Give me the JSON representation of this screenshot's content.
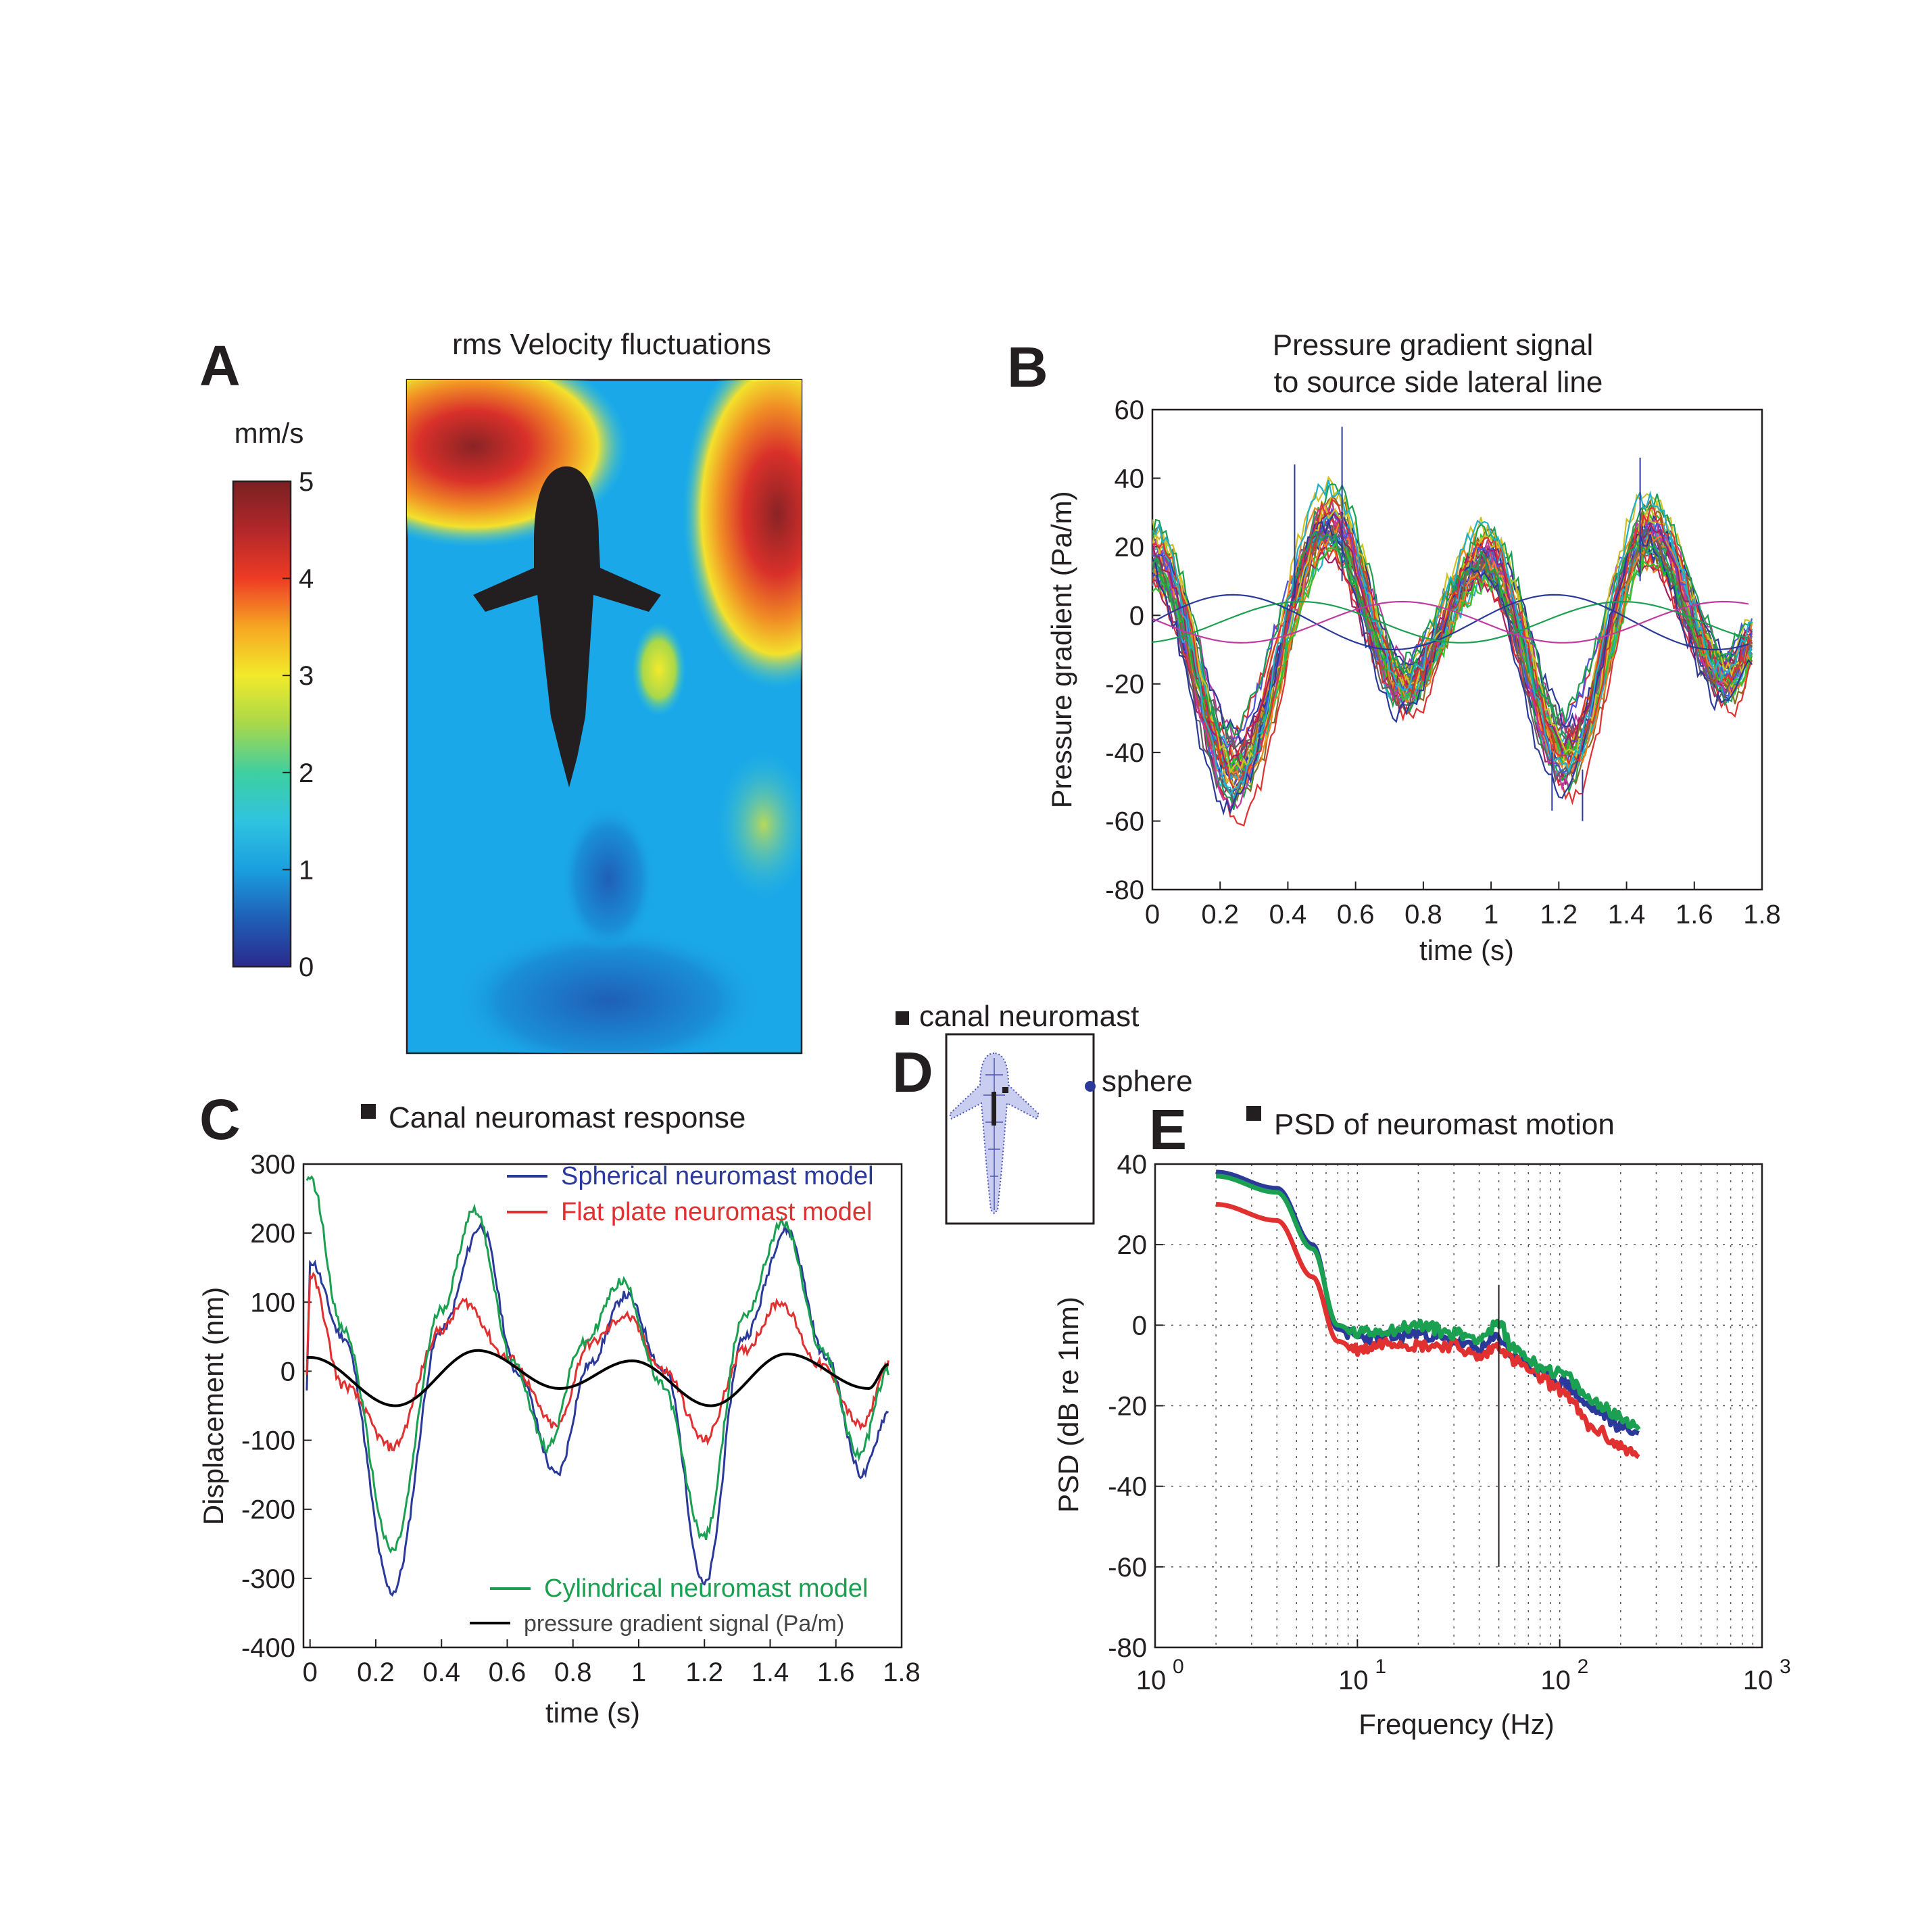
{
  "panels": {
    "A": {
      "letter": "A",
      "title": "rms Velocity fluctuations",
      "colorbar_unit": "mm/s",
      "colorbar_ticks": [
        "0",
        "1",
        "2",
        "3",
        "4",
        "5"
      ],
      "colorbar_range": [
        0,
        5
      ],
      "colormap": [
        "#2b2a8c",
        "#1f5fb8",
        "#1a9fe0",
        "#2ec4e0",
        "#3fcfa0",
        "#a8d84a",
        "#f2ea2a",
        "#f6a623",
        "#ee3b24",
        "#b2272a",
        "#7a2022"
      ]
    },
    "B": {
      "letter": "B",
      "title_line1": "Pressure gradient signal",
      "title_line2": "to source side lateral line"
    },
    "C": {
      "letter": "C",
      "title": "Canal neuromast response"
    },
    "D": {
      "letter": "D",
      "label_canal": "canal neuromast",
      "label_sphere": "sphere"
    },
    "E": {
      "letter": "E",
      "title": "PSD of neuromast motion"
    }
  },
  "chart_data": [
    {
      "id": "B",
      "type": "line",
      "title": "Pressure gradient signal to source side lateral line",
      "xlabel": "time (s)",
      "ylabel": "Pressure gradient (Pa/m)",
      "xlim": [
        0,
        1.8
      ],
      "ylim": [
        -80,
        60
      ],
      "x_ticks": [
        "0",
        "0.2",
        "0.4",
        "0.6",
        "0.8",
        "1",
        "1.2",
        "1.4",
        "1.6",
        "1.8"
      ],
      "y_ticks": [
        "60",
        "40",
        "20",
        "0",
        "-20",
        "-40",
        "-60",
        "-80"
      ],
      "series_description": "approx. 40 overlaid pressure gradient traces, period ~0.47 s, minima near -50 Pa/m at t=0.24 and t=1.22, maxima near +30 Pa/m at t=0.52 and t=1.46, plus a few low-amplitude out-of-phase traces",
      "envelope": {
        "t": [
          0.0,
          0.24,
          0.52,
          0.74,
          0.98,
          1.22,
          1.46,
          1.7,
          1.78
        ],
        "mean": [
          18,
          -45,
          28,
          -20,
          18,
          -40,
          25,
          -18,
          -5
        ]
      },
      "series_colors": [
        "#2b3a9a",
        "#e03030",
        "#1aa050",
        "#20b0c8",
        "#c03aa0",
        "#8a6a20",
        "#f08020",
        "#5050e0",
        "#30c030",
        "#a02060",
        "#606060",
        "#d0c020"
      ]
    },
    {
      "id": "C",
      "type": "line",
      "title": "Canal neuromast response",
      "xlabel": "time (s)",
      "ylabel": "Displacement (nm)",
      "xlim": [
        -0.02,
        1.8
      ],
      "ylim": [
        -400,
        300
      ],
      "x_ticks": [
        "0",
        "0.2",
        "0.4",
        "0.6",
        "0.8",
        "1",
        "1.2",
        "1.4",
        "1.6",
        "1.8"
      ],
      "y_ticks": [
        "300",
        "200",
        "100",
        "0",
        "-100",
        "-200",
        "-300",
        "-400"
      ],
      "series": [
        {
          "name": "Spherical neuromast model",
          "color": "#2b3a9a",
          "x": [
            -0.01,
            0.0,
            0.1,
            0.25,
            0.4,
            0.52,
            0.63,
            0.75,
            0.85,
            0.96,
            1.08,
            1.2,
            1.32,
            1.45,
            1.57,
            1.68,
            1.76
          ],
          "y": [
            -30,
            160,
            50,
            -320,
            60,
            210,
            0,
            -150,
            10,
            110,
            0,
            -310,
            50,
            205,
            20,
            -150,
            -60
          ]
        },
        {
          "name": "Flat plate neuromast model",
          "color": "#e03030",
          "x": [
            -0.01,
            0.0,
            0.1,
            0.25,
            0.4,
            0.47,
            0.6,
            0.75,
            0.85,
            0.96,
            1.08,
            1.2,
            1.32,
            1.43,
            1.55,
            1.68,
            1.76
          ],
          "y": [
            0,
            140,
            -20,
            -110,
            60,
            100,
            20,
            -80,
            40,
            80,
            0,
            -100,
            30,
            100,
            10,
            -80,
            10
          ]
        },
        {
          "name": "Cylindrical neuromast model",
          "color": "#1aa050",
          "x": [
            -0.01,
            0.0,
            0.1,
            0.25,
            0.4,
            0.5,
            0.62,
            0.72,
            0.83,
            0.95,
            1.07,
            1.2,
            1.32,
            1.44,
            1.56,
            1.67,
            1.76
          ],
          "y": [
            270,
            280,
            60,
            -260,
            90,
            235,
            10,
            -110,
            40,
            130,
            -20,
            -240,
            80,
            215,
            30,
            -120,
            0
          ]
        },
        {
          "name": "pressure gradient signal (Pa/m)",
          "color": "#000000",
          "x": [
            -0.01,
            0.0,
            0.26,
            0.51,
            0.76,
            0.98,
            1.22,
            1.45,
            1.7,
            1.76
          ],
          "y": [
            20,
            20,
            -50,
            30,
            -25,
            15,
            -50,
            25,
            -25,
            10
          ]
        }
      ]
    },
    {
      "id": "E",
      "type": "line",
      "title": "PSD of neuromast motion",
      "xlabel": "Frequency (Hz)",
      "ylabel": "PSD (dB re 1nm)",
      "xscale": "log",
      "xlim": [
        1,
        1000
      ],
      "ylim": [
        -80,
        40
      ],
      "x_tick_bases": [
        "10",
        "10",
        "10",
        "10"
      ],
      "x_tick_exps": [
        "0",
        "1",
        "2",
        "3"
      ],
      "y_ticks": [
        "40",
        "20",
        "0",
        "-20",
        "-40",
        "-60",
        "-80"
      ],
      "series": [
        {
          "name": "Spherical",
          "color": "#2b3a9a",
          "x": [
            2,
            4,
            6,
            8,
            10,
            15,
            20,
            30,
            40,
            50,
            60,
            80,
            100,
            150,
            200,
            250
          ],
          "y": [
            38,
            34,
            20,
            -1,
            -3,
            -3,
            -2,
            -4,
            -6,
            -3,
            -8,
            -12,
            -14,
            -21,
            -25,
            -27
          ]
        },
        {
          "name": "Flat plate",
          "color": "#e03030",
          "x": [
            2,
            4,
            6,
            8,
            10,
            15,
            20,
            30,
            40,
            50,
            60,
            80,
            100,
            150,
            200,
            250
          ],
          "y": [
            30,
            26,
            12,
            -4,
            -6,
            -4,
            -5,
            -5,
            -8,
            -5,
            -9,
            -13,
            -16,
            -26,
            -30,
            -33
          ]
        },
        {
          "name": "Cylindrical",
          "color": "#1aa050",
          "x": [
            2,
            4,
            6,
            8,
            10,
            15,
            20,
            30,
            40,
            50,
            60,
            80,
            100,
            150,
            200,
            250
          ],
          "y": [
            37,
            33,
            19,
            0,
            -2,
            -1,
            0,
            -2,
            -3,
            0,
            -6,
            -10,
            -12,
            -19,
            -23,
            -25
          ]
        }
      ],
      "spike": {
        "x": 50,
        "y_top": 10,
        "y_bottom": -60
      }
    }
  ]
}
